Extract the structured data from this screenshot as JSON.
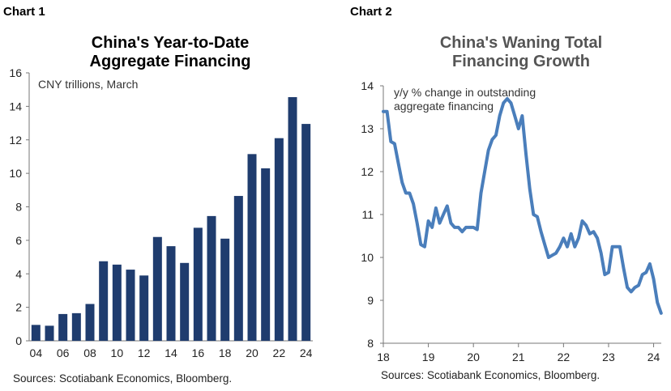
{
  "chart_data": [
    {
      "type": "bar",
      "chart_label": "Chart 1",
      "title_line1": "China's Year-to-Date",
      "title_line2": "Aggregate Financing",
      "unit_note": "CNY trillions, March",
      "source": "Sources: Scotiabank Economics, Bloomberg.",
      "categories": [
        "04",
        "05",
        "06",
        "07",
        "08",
        "09",
        "10",
        "11",
        "12",
        "13",
        "14",
        "15",
        "16",
        "17",
        "18",
        "19",
        "20",
        "21",
        "22",
        "23",
        "24"
      ],
      "x_tick_labels": [
        "04",
        "06",
        "08",
        "10",
        "12",
        "14",
        "16",
        "18",
        "20",
        "22",
        "24"
      ],
      "values": [
        0.95,
        0.9,
        1.6,
        1.65,
        2.2,
        4.75,
        4.55,
        4.25,
        3.9,
        6.2,
        5.65,
        4.65,
        6.75,
        7.45,
        6.1,
        8.65,
        11.15,
        10.3,
        12.1,
        14.55,
        12.95
      ],
      "ylim": [
        0,
        16
      ],
      "y_ticks": [
        0,
        2,
        4,
        6,
        8,
        10,
        12,
        14,
        16
      ],
      "bar_color": "#1f3c6e",
      "grid": false
    },
    {
      "type": "line",
      "chart_label": "Chart 2",
      "title_line1": "China's Waning Total",
      "title_line2": "Financing Growth",
      "unit_note": "y/y % change in outstanding aggregate financing",
      "source": "Sources: Scotiabank Economics, Bloomberg.",
      "xlim": [
        2018,
        2024.17
      ],
      "x_ticks": [
        2018,
        2019,
        2020,
        2021,
        2022,
        2023,
        2024
      ],
      "x_tick_labels": [
        "18",
        "19",
        "20",
        "21",
        "22",
        "23",
        "24"
      ],
      "ylim": [
        8,
        14
      ],
      "y_ticks": [
        8,
        9,
        10,
        11,
        12,
        13,
        14
      ],
      "line_color": "#4a7ebb",
      "grid": false,
      "x": [
        2018.0,
        2018.083,
        2018.167,
        2018.25,
        2018.333,
        2018.417,
        2018.5,
        2018.583,
        2018.667,
        2018.75,
        2018.833,
        2018.917,
        2019.0,
        2019.083,
        2019.167,
        2019.25,
        2019.333,
        2019.417,
        2019.5,
        2019.583,
        2019.667,
        2019.75,
        2019.833,
        2019.917,
        2020.0,
        2020.083,
        2020.167,
        2020.25,
        2020.333,
        2020.417,
        2020.5,
        2020.583,
        2020.667,
        2020.75,
        2020.833,
        2020.917,
        2021.0,
        2021.083,
        2021.167,
        2021.25,
        2021.333,
        2021.417,
        2021.5,
        2021.583,
        2021.667,
        2021.75,
        2021.833,
        2021.917,
        2022.0,
        2022.083,
        2022.167,
        2022.25,
        2022.333,
        2022.417,
        2022.5,
        2022.583,
        2022.667,
        2022.75,
        2022.833,
        2022.917,
        2023.0,
        2023.083,
        2023.167,
        2023.25,
        2023.333,
        2023.417,
        2023.5,
        2023.583,
        2023.667,
        2023.75,
        2023.833,
        2023.917,
        2024.0,
        2024.083,
        2024.167
      ],
      "y": [
        13.4,
        13.4,
        12.7,
        12.65,
        12.2,
        11.75,
        11.5,
        11.5,
        11.25,
        10.8,
        10.3,
        10.25,
        10.85,
        10.7,
        11.15,
        10.8,
        11.0,
        11.2,
        10.8,
        10.7,
        10.7,
        10.6,
        10.7,
        10.7,
        10.7,
        10.65,
        11.5,
        12.0,
        12.5,
        12.75,
        12.85,
        13.3,
        13.6,
        13.7,
        13.6,
        13.3,
        13.0,
        13.3,
        12.4,
        11.6,
        11.0,
        10.95,
        10.6,
        10.3,
        10.0,
        10.05,
        10.1,
        10.25,
        10.45,
        10.25,
        10.55,
        10.25,
        10.45,
        10.85,
        10.75,
        10.55,
        10.6,
        10.45,
        10.1,
        9.6,
        9.65,
        10.25,
        10.25,
        10.25,
        9.75,
        9.3,
        9.2,
        9.3,
        9.35,
        9.6,
        9.65,
        9.85,
        9.5,
        8.95,
        8.7
      ]
    }
  ]
}
